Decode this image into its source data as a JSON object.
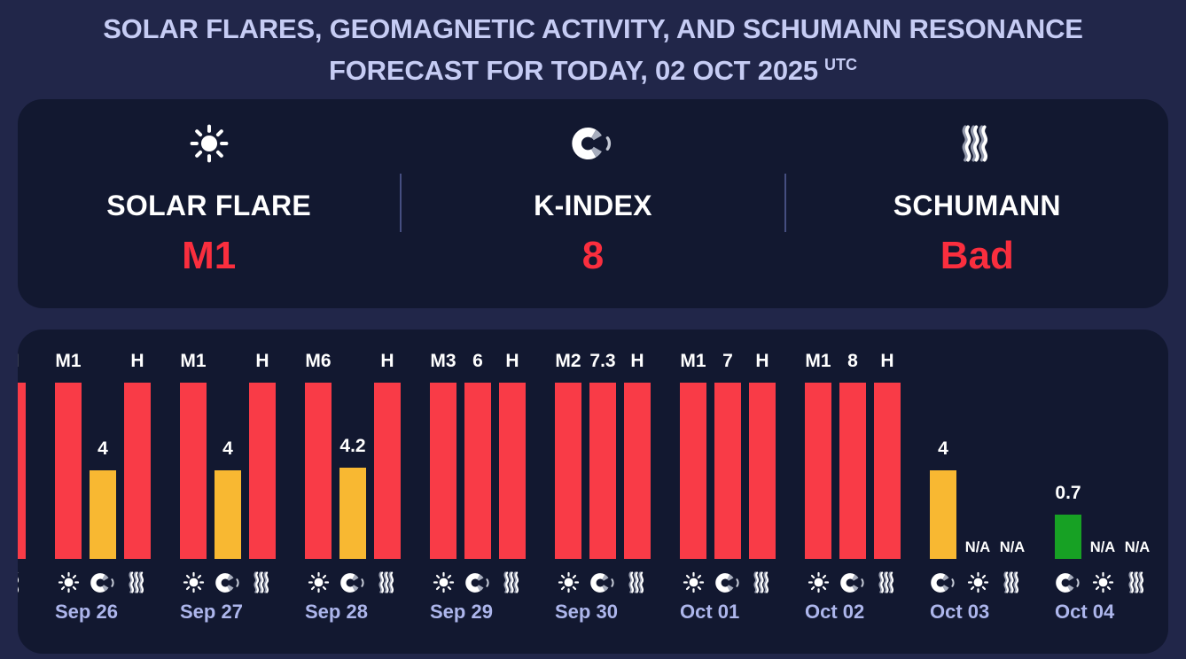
{
  "title": {
    "line1": "SOLAR FLARES, GEOMAGNETIC ACTIVITY, AND SCHUMANN RESONANCE",
    "line2": "FORECAST FOR TODAY, 02 OCT 2025",
    "superscript": "UTC"
  },
  "summary": {
    "metrics": [
      {
        "id": "solar-flare",
        "icon": "sun-icon",
        "label": "SOLAR FLARE",
        "value": "M1"
      },
      {
        "id": "k-index",
        "icon": "magnet-icon",
        "label": "K-INDEX",
        "value": "8"
      },
      {
        "id": "schumann",
        "icon": "waves-icon",
        "label": "SCHUMANN",
        "value": "Bad"
      }
    ]
  },
  "chart_data": {
    "type": "bar",
    "description": "9-day forecast; per day three bars: solar flare class, planetary K-index, Schumann resonance state. Bar height encodes severity (full = severe/red, half = moderate/orange, quarter = quiet/green).",
    "legend_position": "none",
    "grid": false,
    "groups": [
      {
        "date": "",
        "partial": true,
        "bars": [
          {
            "metric": "schumann",
            "value": "H",
            "level": 1,
            "color": "red",
            "icon": "waves-icon"
          }
        ]
      },
      {
        "date": "Sep 26",
        "bars": [
          {
            "metric": "solar-flare",
            "value": "M1",
            "level": 1,
            "color": "red",
            "icon": "sun-icon"
          },
          {
            "metric": "k-index",
            "value": "4",
            "level": 0.5,
            "color": "orange",
            "icon": "magnet-icon"
          },
          {
            "metric": "schumann",
            "value": "H",
            "level": 1,
            "color": "red",
            "icon": "waves-icon"
          }
        ]
      },
      {
        "date": "Sep 27",
        "bars": [
          {
            "metric": "solar-flare",
            "value": "M1",
            "level": 1,
            "color": "red",
            "icon": "sun-icon"
          },
          {
            "metric": "k-index",
            "value": "4",
            "level": 0.5,
            "color": "orange",
            "icon": "magnet-icon"
          },
          {
            "metric": "schumann",
            "value": "H",
            "level": 1,
            "color": "red",
            "icon": "waves-icon"
          }
        ]
      },
      {
        "date": "Sep 28",
        "bars": [
          {
            "metric": "solar-flare",
            "value": "M6",
            "level": 1,
            "color": "red",
            "icon": "sun-icon"
          },
          {
            "metric": "k-index",
            "value": "4.2",
            "level": 0.52,
            "color": "orange",
            "icon": "magnet-icon"
          },
          {
            "metric": "schumann",
            "value": "H",
            "level": 1,
            "color": "red",
            "icon": "waves-icon"
          }
        ]
      },
      {
        "date": "Sep 29",
        "bars": [
          {
            "metric": "solar-flare",
            "value": "M3",
            "level": 1,
            "color": "red",
            "icon": "sun-icon"
          },
          {
            "metric": "k-index",
            "value": "6",
            "level": 1,
            "color": "red",
            "icon": "magnet-icon"
          },
          {
            "metric": "schumann",
            "value": "H",
            "level": 1,
            "color": "red",
            "icon": "waves-icon"
          }
        ]
      },
      {
        "date": "Sep 30",
        "bars": [
          {
            "metric": "solar-flare",
            "value": "M2",
            "level": 1,
            "color": "red",
            "icon": "sun-icon"
          },
          {
            "metric": "k-index",
            "value": "7.3",
            "level": 1,
            "color": "red",
            "icon": "magnet-icon"
          },
          {
            "metric": "schumann",
            "value": "H",
            "level": 1,
            "color": "red",
            "icon": "waves-icon"
          }
        ]
      },
      {
        "date": "Oct 01",
        "bars": [
          {
            "metric": "solar-flare",
            "value": "M1",
            "level": 1,
            "color": "red",
            "icon": "sun-icon"
          },
          {
            "metric": "k-index",
            "value": "7",
            "level": 1,
            "color": "red",
            "icon": "magnet-icon"
          },
          {
            "metric": "schumann",
            "value": "H",
            "level": 1,
            "color": "red",
            "icon": "waves-icon"
          }
        ]
      },
      {
        "date": "Oct 02",
        "bars": [
          {
            "metric": "solar-flare",
            "value": "M1",
            "level": 1,
            "color": "red",
            "icon": "sun-icon"
          },
          {
            "metric": "k-index",
            "value": "8",
            "level": 1,
            "color": "red",
            "icon": "magnet-icon"
          },
          {
            "metric": "schumann",
            "value": "H",
            "level": 1,
            "color": "red",
            "icon": "waves-icon"
          }
        ]
      },
      {
        "date": "Oct 03",
        "bars": [
          {
            "metric": "k-index",
            "value": "4",
            "level": 0.5,
            "color": "orange",
            "icon": "magnet-icon"
          },
          {
            "metric": "solar-flare",
            "value": "N/A",
            "na": true,
            "icon": "sun-icon"
          },
          {
            "metric": "schumann",
            "value": "N/A",
            "na": true,
            "icon": "waves-icon"
          }
        ]
      },
      {
        "date": "Oct 04",
        "bars": [
          {
            "metric": "k-index",
            "value": "0.7",
            "level": 0.25,
            "color": "green",
            "icon": "magnet-icon"
          },
          {
            "metric": "solar-flare",
            "value": "N/A",
            "na": true,
            "icon": "sun-icon"
          },
          {
            "metric": "schumann",
            "value": "N/A",
            "na": true,
            "icon": "waves-icon"
          }
        ]
      }
    ]
  },
  "colors": {
    "page_bg": "#212649",
    "panel_bg": "#121830",
    "title_text": "#c6ccf4",
    "date_text": "#adb6ec",
    "label_text": "#ffffff",
    "value_red": "#fa2e3e",
    "red": "#f93b47",
    "orange": "#f8b832",
    "green": "#17a124",
    "divider": "#454e80",
    "icon_gray": "#a7adbd"
  }
}
